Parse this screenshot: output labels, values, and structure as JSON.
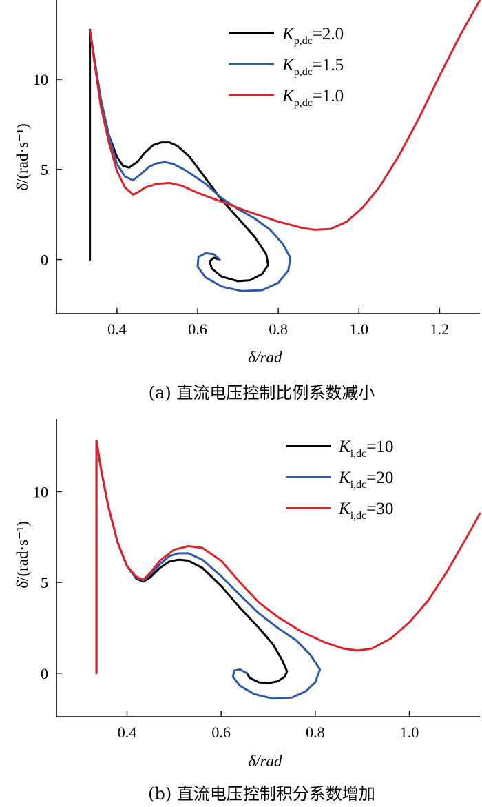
{
  "colors": {
    "black": "#000000",
    "blue": "#2e5aa8",
    "red": "#d7262b"
  },
  "chart_data": [
    {
      "type": "line",
      "xlabel": "δ/rad",
      "ylabel": "δ̇/(rad·s⁻¹)",
      "xlim": [
        0.25,
        1.3
      ],
      "ylim": [
        -3.0,
        14.4
      ],
      "xticks": [
        "0.4",
        "0.6",
        "0.8",
        "1.0",
        "1.2"
      ],
      "xtick_values": [
        0.4,
        0.6,
        0.8,
        1.0,
        1.2
      ],
      "yticks": [
        "0",
        "5",
        "10"
      ],
      "ytick_values": [
        0,
        5,
        10
      ],
      "legend_position": "top-right",
      "caption": "(a)  直流电压控制比例系数减小",
      "series": [
        {
          "name": "K_p,dc=2.0",
          "legend_main": "K",
          "legend_sub": "p,dc",
          "legend_value": "=2.0",
          "color": "#000000",
          "points": [
            [
              0.333,
              0.0
            ],
            [
              0.333,
              12.75
            ],
            [
              0.345,
              11.0
            ],
            [
              0.36,
              8.9
            ],
            [
              0.38,
              6.9
            ],
            [
              0.4,
              5.7
            ],
            [
              0.415,
              5.2
            ],
            [
              0.43,
              5.1
            ],
            [
              0.45,
              5.4
            ],
            [
              0.47,
              5.95
            ],
            [
              0.49,
              6.35
            ],
            [
              0.51,
              6.5
            ],
            [
              0.53,
              6.5
            ],
            [
              0.55,
              6.3
            ],
            [
              0.58,
              5.7
            ],
            [
              0.62,
              4.5
            ],
            [
              0.66,
              3.3
            ],
            [
              0.7,
              2.3
            ],
            [
              0.74,
              1.3
            ],
            [
              0.77,
              0.3
            ],
            [
              0.775,
              -0.3
            ],
            [
              0.76,
              -0.8
            ],
            [
              0.73,
              -1.15
            ],
            [
              0.7,
              -1.2
            ],
            [
              0.66,
              -0.95
            ],
            [
              0.635,
              -0.5
            ],
            [
              0.63,
              -0.1
            ],
            [
              0.64,
              0.1
            ],
            [
              0.655,
              0.0
            ]
          ]
        },
        {
          "name": "K_p,dc=1.5",
          "legend_main": "K",
          "legend_sub": "p,dc",
          "legend_value": "=1.5",
          "color": "#2e5aa8",
          "points": [
            [
              0.333,
              12.7
            ],
            [
              0.345,
              11.0
            ],
            [
              0.36,
              8.9
            ],
            [
              0.38,
              6.9
            ],
            [
              0.4,
              5.3
            ],
            [
              0.42,
              4.6
            ],
            [
              0.44,
              4.4
            ],
            [
              0.46,
              4.75
            ],
            [
              0.48,
              5.15
            ],
            [
              0.5,
              5.35
            ],
            [
              0.52,
              5.4
            ],
            [
              0.54,
              5.3
            ],
            [
              0.57,
              4.95
            ],
            [
              0.62,
              4.2
            ],
            [
              0.66,
              3.4
            ],
            [
              0.7,
              2.8
            ],
            [
              0.74,
              2.3
            ],
            [
              0.78,
              1.65
            ],
            [
              0.81,
              0.9
            ],
            [
              0.83,
              0.1
            ],
            [
              0.825,
              -0.6
            ],
            [
              0.8,
              -1.3
            ],
            [
              0.76,
              -1.7
            ],
            [
              0.71,
              -1.75
            ],
            [
              0.66,
              -1.5
            ],
            [
              0.62,
              -1.0
            ],
            [
              0.6,
              -0.4
            ],
            [
              0.602,
              0.15
            ],
            [
              0.62,
              0.35
            ],
            [
              0.64,
              0.3
            ],
            [
              0.655,
              0.0
            ]
          ]
        },
        {
          "name": "K_p,dc=1.0",
          "legend_main": "K",
          "legend_sub": "p,dc",
          "legend_value": "=1.0",
          "color": "#d7262b",
          "points": [
            [
              0.333,
              12.7
            ],
            [
              0.345,
              10.8
            ],
            [
              0.36,
              8.5
            ],
            [
              0.38,
              6.5
            ],
            [
              0.4,
              4.9
            ],
            [
              0.42,
              4.0
            ],
            [
              0.44,
              3.6
            ],
            [
              0.45,
              3.7
            ],
            [
              0.47,
              4.0
            ],
            [
              0.5,
              4.2
            ],
            [
              0.53,
              4.25
            ],
            [
              0.56,
              4.1
            ],
            [
              0.6,
              3.7
            ],
            [
              0.66,
              3.2
            ],
            [
              0.72,
              2.7
            ],
            [
              0.8,
              2.1
            ],
            [
              0.86,
              1.75
            ],
            [
              0.89,
              1.65
            ],
            [
              0.93,
              1.7
            ],
            [
              0.97,
              2.1
            ],
            [
              1.01,
              2.9
            ],
            [
              1.05,
              4.0
            ],
            [
              1.1,
              5.8
            ],
            [
              1.15,
              7.9
            ],
            [
              1.2,
              10.2
            ],
            [
              1.25,
              12.4
            ],
            [
              1.3,
              14.4
            ]
          ]
        }
      ]
    },
    {
      "type": "line",
      "xlabel": "δ/rad",
      "ylabel": "δ̇/(rad·s⁻¹)",
      "xlim": [
        0.25,
        1.15
      ],
      "ylim": [
        -2.4,
        14.0
      ],
      "xticks": [
        "0.4",
        "0.6",
        "0.8",
        "1.0"
      ],
      "xtick_values": [
        0.4,
        0.6,
        0.8,
        1.0
      ],
      "yticks": [
        "0",
        "5",
        "10"
      ],
      "ytick_values": [
        0,
        5,
        10
      ],
      "legend_position": "top-right",
      "caption": "(b)  直流电压控制积分系数增加",
      "series": [
        {
          "name": "K_i,dc=10",
          "legend_main": "K",
          "legend_sub": "i,dc",
          "legend_value": "=10",
          "color": "#000000",
          "points": [
            [
              0.335,
              0.0
            ],
            [
              0.335,
              12.8
            ],
            [
              0.345,
              11.2
            ],
            [
              0.36,
              9.2
            ],
            [
              0.38,
              7.2
            ],
            [
              0.4,
              5.9
            ],
            [
              0.42,
              5.2
            ],
            [
              0.435,
              5.05
            ],
            [
              0.45,
              5.3
            ],
            [
              0.47,
              5.8
            ],
            [
              0.49,
              6.15
            ],
            [
              0.51,
              6.25
            ],
            [
              0.53,
              6.2
            ],
            [
              0.56,
              5.8
            ],
            [
              0.6,
              4.8
            ],
            [
              0.64,
              3.6
            ],
            [
              0.68,
              2.5
            ],
            [
              0.71,
              1.6
            ],
            [
              0.73,
              0.7
            ],
            [
              0.74,
              0.1
            ],
            [
              0.735,
              -0.2
            ],
            [
              0.72,
              -0.45
            ],
            [
              0.7,
              -0.55
            ],
            [
              0.68,
              -0.5
            ],
            [
              0.66,
              -0.25
            ],
            [
              0.655,
              0.0
            ]
          ]
        },
        {
          "name": "K_i,dc=20",
          "legend_main": "K",
          "legend_sub": "i,dc",
          "legend_value": "=20",
          "color": "#2e5aa8",
          "points": [
            [
              0.335,
              12.8
            ],
            [
              0.345,
              11.2
            ],
            [
              0.36,
              9.2
            ],
            [
              0.38,
              7.2
            ],
            [
              0.4,
              5.9
            ],
            [
              0.42,
              5.25
            ],
            [
              0.435,
              5.1
            ],
            [
              0.45,
              5.45
            ],
            [
              0.47,
              6.0
            ],
            [
              0.49,
              6.45
            ],
            [
              0.51,
              6.6
            ],
            [
              0.53,
              6.6
            ],
            [
              0.56,
              6.25
            ],
            [
              0.6,
              5.35
            ],
            [
              0.64,
              4.3
            ],
            [
              0.68,
              3.3
            ],
            [
              0.72,
              2.5
            ],
            [
              0.76,
              1.8
            ],
            [
              0.79,
              1.0
            ],
            [
              0.81,
              0.2
            ],
            [
              0.8,
              -0.5
            ],
            [
              0.78,
              -1.0
            ],
            [
              0.75,
              -1.35
            ],
            [
              0.71,
              -1.4
            ],
            [
              0.67,
              -1.15
            ],
            [
              0.64,
              -0.7
            ],
            [
              0.625,
              -0.2
            ],
            [
              0.628,
              0.15
            ],
            [
              0.64,
              0.2
            ],
            [
              0.655,
              0.0
            ]
          ]
        },
        {
          "name": "K_i,dc=30",
          "legend_main": "K",
          "legend_sub": "i,dc",
          "legend_value": "=30",
          "color": "#d7262b",
          "points": [
            [
              0.335,
              0.0
            ],
            [
              0.335,
              12.8
            ],
            [
              0.345,
              11.2
            ],
            [
              0.36,
              9.2
            ],
            [
              0.38,
              7.2
            ],
            [
              0.4,
              5.9
            ],
            [
              0.42,
              5.3
            ],
            [
              0.435,
              5.15
            ],
            [
              0.45,
              5.55
            ],
            [
              0.47,
              6.2
            ],
            [
              0.5,
              6.8
            ],
            [
              0.53,
              7.0
            ],
            [
              0.56,
              6.9
            ],
            [
              0.6,
              6.2
            ],
            [
              0.64,
              5.0
            ],
            [
              0.68,
              3.9
            ],
            [
              0.72,
              3.1
            ],
            [
              0.77,
              2.3
            ],
            [
              0.82,
              1.7
            ],
            [
              0.86,
              1.35
            ],
            [
              0.89,
              1.25
            ],
            [
              0.92,
              1.35
            ],
            [
              0.96,
              1.9
            ],
            [
              1.0,
              2.8
            ],
            [
              1.04,
              4.0
            ],
            [
              1.08,
              5.6
            ],
            [
              1.12,
              7.4
            ],
            [
              1.15,
              8.8
            ]
          ]
        }
      ]
    }
  ]
}
